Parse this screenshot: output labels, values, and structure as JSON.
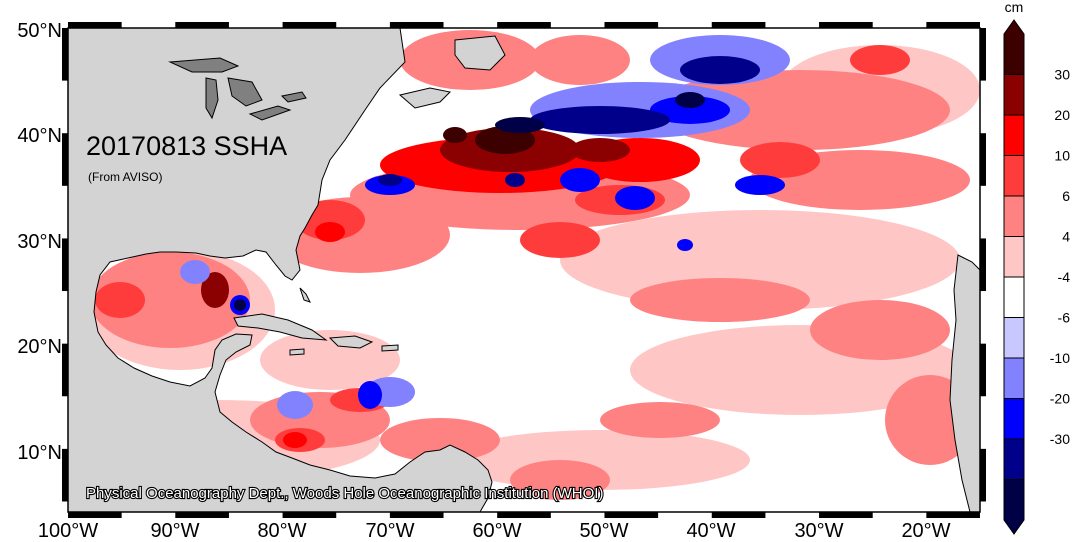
{
  "map": {
    "title": "20170813 SSHA",
    "source": "(From AVISO)",
    "credit": "Physical Oceanography Dept., Woods Hole Oceanographic Institution (WHOI)",
    "lat_labels": [
      "50°N",
      "40°N",
      "30°N",
      "20°N",
      "10°N"
    ],
    "lon_labels": [
      "100°W",
      "90°W",
      "80°W",
      "70°W",
      "60°W",
      "50°W",
      "40°W",
      "30°W",
      "20°W"
    ],
    "region": {
      "lon_range": [
        -100,
        -15
      ],
      "lat_range": [
        5,
        51
      ]
    },
    "land_color": "#d3d3d3",
    "ocean_color": "#ffffff"
  },
  "colorbar": {
    "unit": "cm",
    "tick_labels": [
      "30",
      "20",
      "10",
      "6",
      "4",
      "-4",
      "-6",
      "-10",
      "-20",
      "-30"
    ],
    "colors": [
      "#3d0000",
      "#8b0000",
      "#ff0000",
      "#ff3c3c",
      "#ff8282",
      "#ffc6c6",
      "#ffffff",
      "#c8c8ff",
      "#8282ff",
      "#0000ff",
      "#00008b",
      "#000046"
    ]
  }
}
